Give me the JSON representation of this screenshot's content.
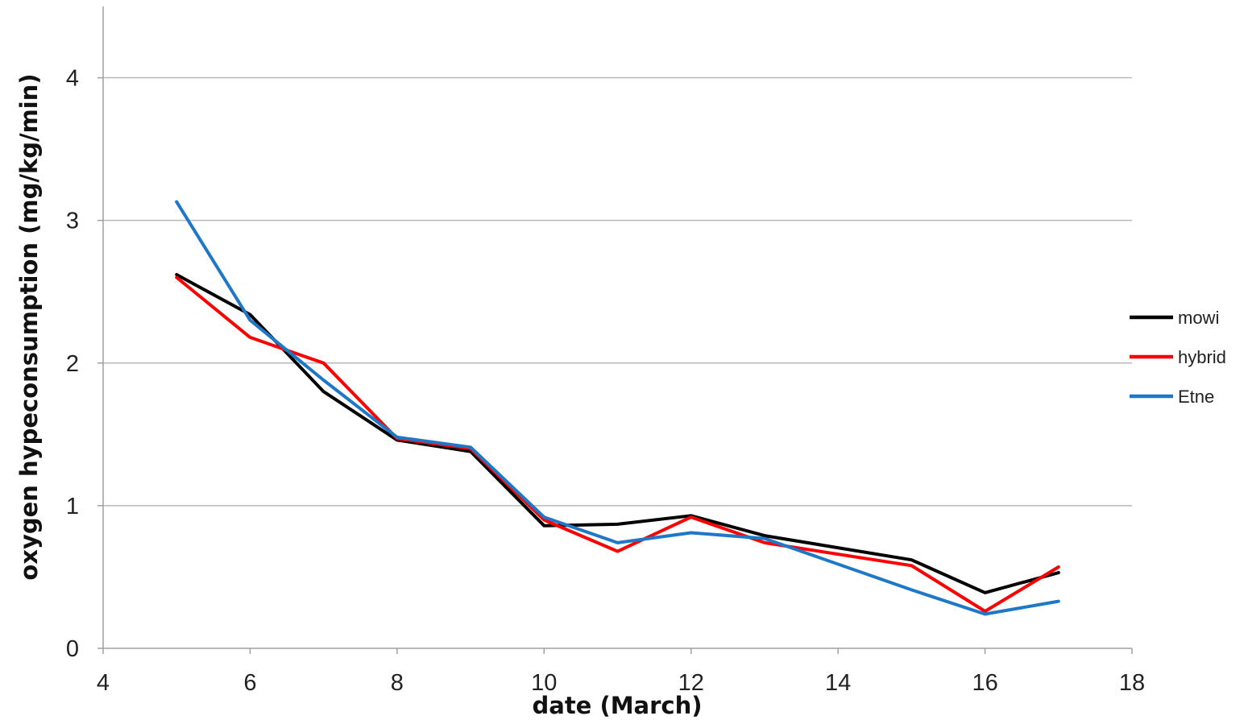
{
  "chart_data": {
    "type": "line",
    "title": "",
    "xlabel": "date (March)",
    "ylabel": "oxygen hypeconsumption (mg/kg/min)",
    "xlim": [
      4,
      18
    ],
    "ylim": [
      0,
      4.5
    ],
    "x_ticks": [
      4,
      6,
      8,
      10,
      12,
      14,
      16,
      18
    ],
    "y_ticks": [
      0,
      1,
      2,
      3,
      4
    ],
    "grid": "horizontal",
    "legend_position": "right",
    "series": [
      {
        "name": "mowi",
        "color": "#000000",
        "x": [
          5,
          6,
          7,
          8,
          9,
          10,
          11,
          12,
          13,
          15,
          16,
          17
        ],
        "y": [
          2.62,
          2.34,
          1.8,
          1.46,
          1.38,
          0.86,
          0.87,
          0.93,
          0.79,
          0.62,
          0.39,
          0.53
        ]
      },
      {
        "name": "hybrid",
        "color": "#ff0000",
        "x": [
          5,
          6,
          7,
          8,
          9,
          10,
          11,
          12,
          13,
          15,
          16,
          17
        ],
        "y": [
          2.6,
          2.18,
          2.0,
          1.47,
          1.4,
          0.9,
          0.68,
          0.92,
          0.74,
          0.58,
          0.26,
          0.57
        ]
      },
      {
        "name": "Etne",
        "color": "#1f77c8",
        "x": [
          5,
          6,
          7,
          8,
          9,
          10,
          11,
          12,
          13,
          15,
          16,
          17
        ],
        "y": [
          3.13,
          2.3,
          1.88,
          1.48,
          1.41,
          0.92,
          0.74,
          0.81,
          0.77,
          0.41,
          0.24,
          0.33
        ]
      }
    ]
  }
}
